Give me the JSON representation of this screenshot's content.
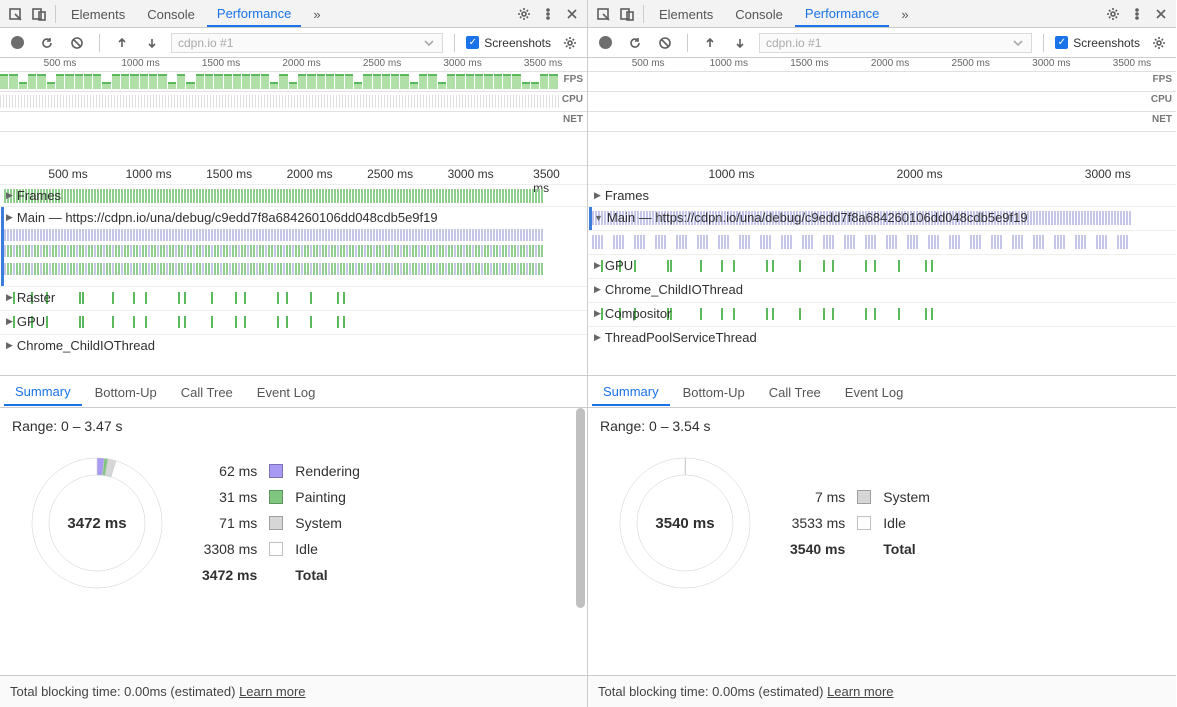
{
  "panels": [
    {
      "tabs": {
        "elements": "Elements",
        "console": "Console",
        "performance": "Performance",
        "more": "»"
      },
      "activeTab": "Performance",
      "url": "cdpn.io #1",
      "screenshotsLabel": "Screenshots",
      "screenshotsChecked": true,
      "overviewTicks": [
        "500 ms",
        "1000 ms",
        "1500 ms",
        "2000 ms",
        "2500 ms",
        "3000 ms",
        "3500 ms"
      ],
      "ovLabels": {
        "fps": "FPS",
        "cpu": "CPU",
        "net": "NET"
      },
      "fpsDense": true,
      "flameTicks": [
        "500 ms",
        "1000 ms",
        "1500 ms",
        "2000 ms",
        "2500 ms",
        "3000 ms",
        "3500 ms"
      ],
      "threads": {
        "frames": "Frames",
        "main": "Main — https://cdpn.io/una/debug/c9edd7f8a684260106dd048cdb5e9f19",
        "raster": "Raster",
        "gpu": "GPU",
        "childio": "Chrome_ChildIOThread"
      },
      "mainExpanded": false,
      "threadOrder": [
        "raster",
        "gpu",
        "childio"
      ],
      "mainDense": true,
      "sumTabs": {
        "summary": "Summary",
        "bottomup": "Bottom-Up",
        "calltree": "Call Tree",
        "eventlog": "Event Log"
      },
      "range": "Range: 0 – 3.47 s",
      "donutCenter": "3472 ms",
      "donutData": [
        {
          "label": "Rendering",
          "ms": "62 ms",
          "val": 62,
          "color": "#a89af2"
        },
        {
          "label": "Painting",
          "ms": "31 ms",
          "val": 31,
          "color": "#7fc77f"
        },
        {
          "label": "System",
          "ms": "71 ms",
          "val": 71,
          "color": "#d6d6d6"
        },
        {
          "label": "Idle",
          "ms": "3308 ms",
          "val": 3308,
          "color": "#ffffff"
        }
      ],
      "total": {
        "ms": "3472 ms",
        "label": "Total"
      },
      "footer": {
        "text": "Total blocking time: 0.00ms (estimated)",
        "learn": "Learn more"
      }
    },
    {
      "tabs": {
        "elements": "Elements",
        "console": "Console",
        "performance": "Performance",
        "more": "»"
      },
      "activeTab": "Performance",
      "url": "cdpn.io #1",
      "screenshotsLabel": "Screenshots",
      "screenshotsChecked": true,
      "overviewTicks": [
        "500 ms",
        "1000 ms",
        "1500 ms",
        "2000 ms",
        "2500 ms",
        "3000 ms",
        "3500 ms"
      ],
      "ovLabels": {
        "fps": "FPS",
        "cpu": "CPU",
        "net": "NET"
      },
      "fpsDense": false,
      "flameTicks": [
        "1000 ms",
        "2000 ms",
        "3000 ms"
      ],
      "threads": {
        "frames": "Frames",
        "main": "Main — https://cdpn.io/una/debug/c9edd7f8a684260106dd048cdb5e9f19",
        "gpu": "GPU",
        "childio": "Chrome_ChildIOThread",
        "compositor": "Compositor",
        "threadpool": "ThreadPoolServiceThread"
      },
      "mainExpanded": true,
      "threadOrder": [
        "gpu",
        "childio",
        "compositor",
        "threadpool"
      ],
      "mainDense": false,
      "sumTabs": {
        "summary": "Summary",
        "bottomup": "Bottom-Up",
        "calltree": "Call Tree",
        "eventlog": "Event Log"
      },
      "range": "Range: 0 – 3.54 s",
      "donutCenter": "3540 ms",
      "donutData": [
        {
          "label": "System",
          "ms": "7 ms",
          "val": 7,
          "color": "#d6d6d6"
        },
        {
          "label": "Idle",
          "ms": "3533 ms",
          "val": 3533,
          "color": "#ffffff"
        }
      ],
      "total": {
        "ms": "3540 ms",
        "label": "Total"
      },
      "footer": {
        "text": "Total blocking time: 0.00ms (estimated)",
        "learn": "Learn more"
      }
    }
  ],
  "colors": {
    "accent": "#1a73e8",
    "frameBar": "#8fce8f",
    "mainBarA": "#c6c6e8",
    "mainBarB": "#8fce8f",
    "gpuBar": "#5cb85c"
  }
}
